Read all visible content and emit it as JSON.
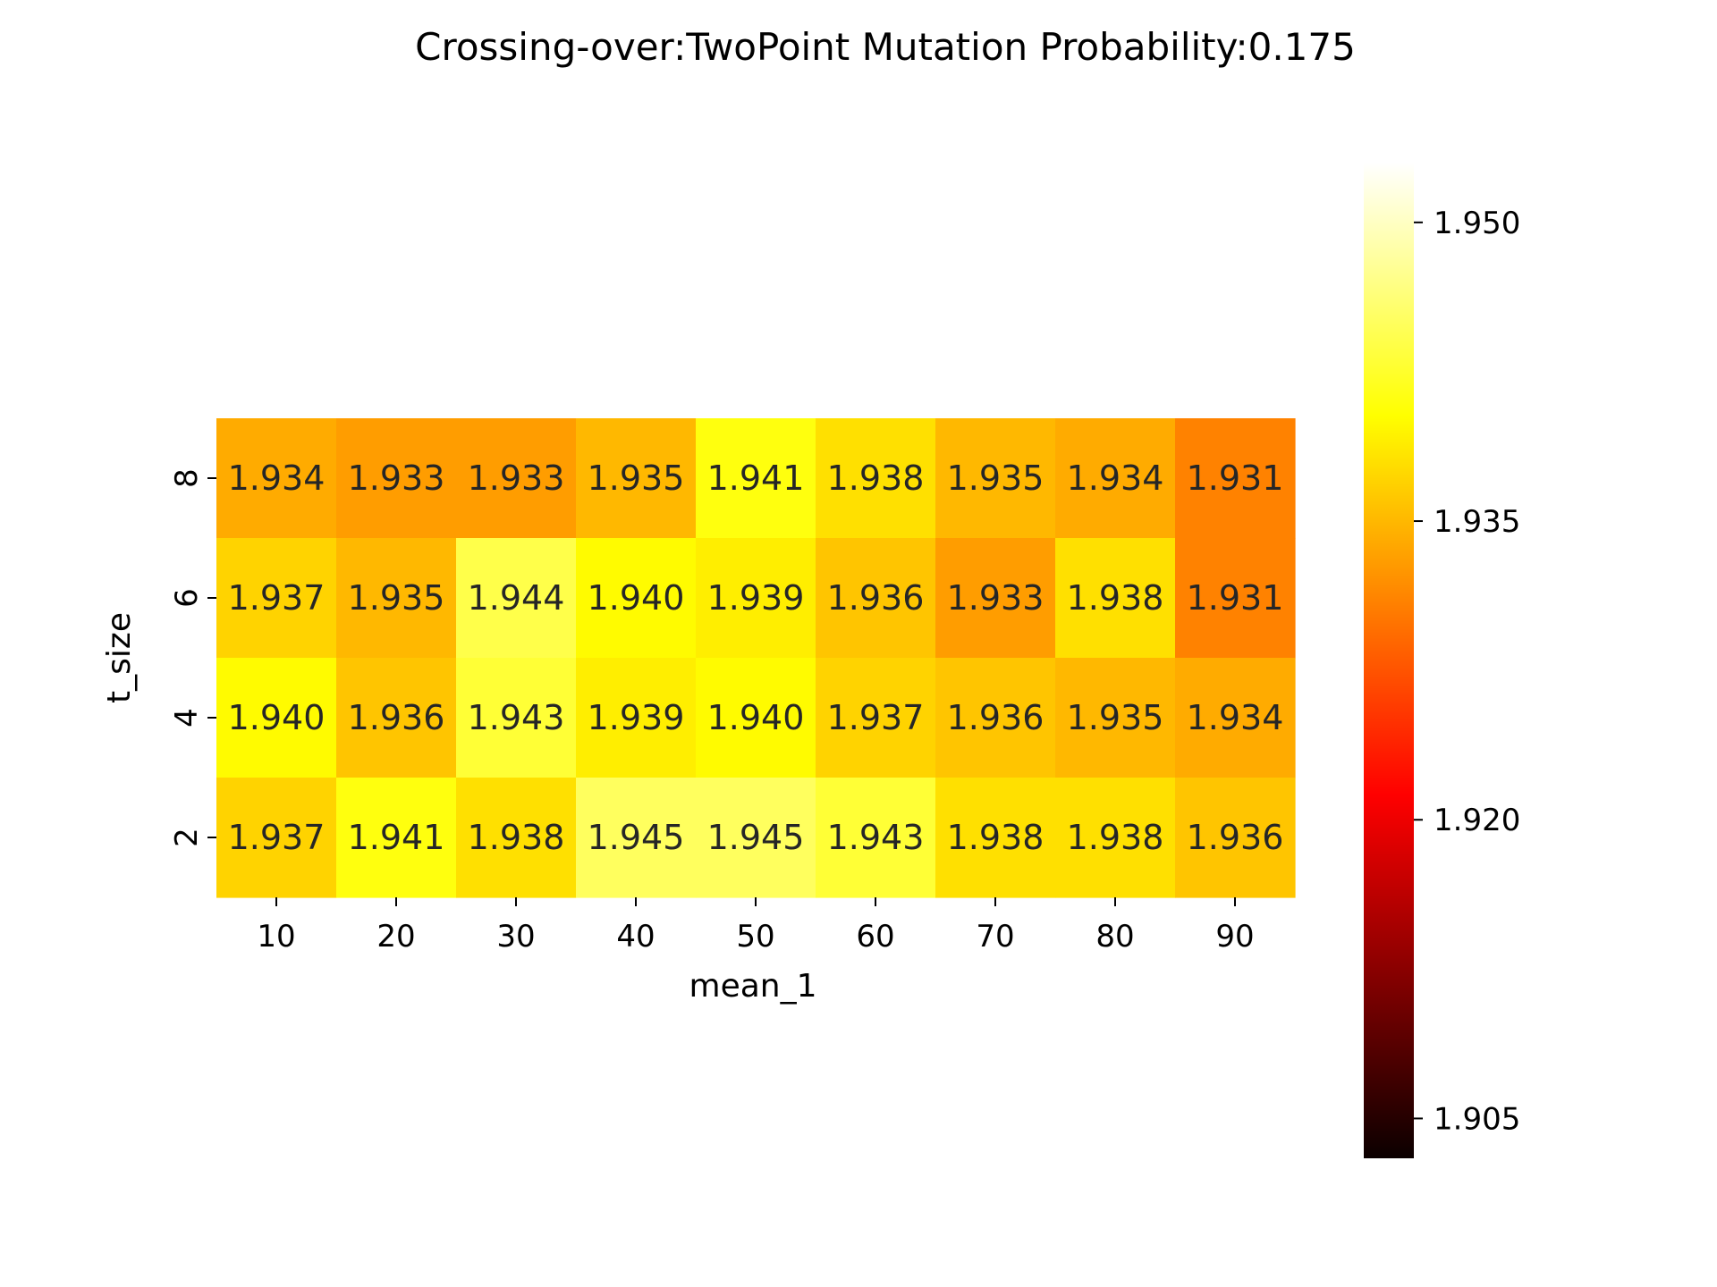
{
  "chart_data": {
    "type": "heatmap",
    "title": "Crossing-over:TwoPoint Mutation Probability:0.175",
    "xlabel": "mean_1",
    "ylabel": "t_size",
    "x_categories": [
      "10",
      "20",
      "30",
      "40",
      "50",
      "60",
      "70",
      "80",
      "90"
    ],
    "y_categories": [
      "8",
      "6",
      "4",
      "2"
    ],
    "values": [
      [
        1.934,
        1.933,
        1.933,
        1.935,
        1.941,
        1.938,
        1.935,
        1.934,
        1.931
      ],
      [
        1.937,
        1.935,
        1.944,
        1.94,
        1.939,
        1.936,
        1.933,
        1.938,
        1.931
      ],
      [
        1.94,
        1.936,
        1.943,
        1.939,
        1.94,
        1.937,
        1.936,
        1.935,
        1.934
      ],
      [
        1.937,
        1.941,
        1.938,
        1.945,
        1.945,
        1.943,
        1.938,
        1.938,
        1.936
      ]
    ],
    "cell_labels": [
      [
        "1.934",
        "1.933",
        "1.933",
        "1.935",
        "1.941",
        "1.938",
        "1.935",
        "1.934",
        "1.931"
      ],
      [
        "1.937",
        "1.935",
        "1.944",
        "1.940",
        "1.939",
        "1.936",
        "1.933",
        "1.938",
        "1.931"
      ],
      [
        "1.940",
        "1.936",
        "1.943",
        "1.939",
        "1.940",
        "1.937",
        "1.936",
        "1.935",
        "1.934"
      ],
      [
        "1.937",
        "1.941",
        "1.938",
        "1.945",
        "1.945",
        "1.943",
        "1.938",
        "1.938",
        "1.936"
      ]
    ],
    "colormap": "hot",
    "colorbar": {
      "range": [
        1.903,
        1.953
      ],
      "ticks": [
        1.905,
        1.92,
        1.935,
        1.95
      ],
      "tick_labels": [
        "1.905",
        "1.920",
        "1.935",
        "1.950"
      ],
      "placement": "right"
    },
    "annotation_colors": {
      "dark": "#262626",
      "light": "#ffffff"
    }
  }
}
